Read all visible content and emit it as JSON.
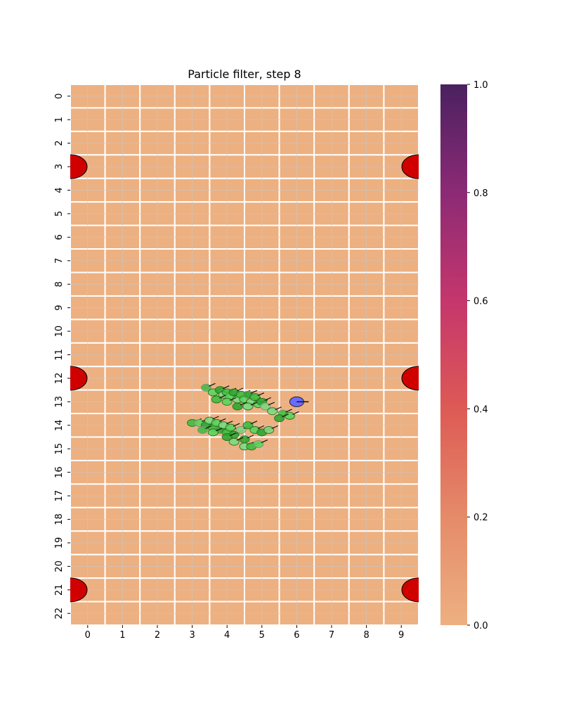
{
  "chart_data": {
    "type": "heatmap",
    "title": "Particle filter, step 8",
    "xlabel": "",
    "ylabel": "",
    "rows": 23,
    "cols": 10,
    "x_ticks": [
      "0",
      "1",
      "2",
      "3",
      "4",
      "5",
      "6",
      "7",
      "8",
      "9"
    ],
    "y_ticks": [
      "0",
      "1",
      "2",
      "3",
      "4",
      "5",
      "6",
      "7",
      "8",
      "9",
      "10",
      "11",
      "12",
      "13",
      "14",
      "15",
      "16",
      "17",
      "18",
      "19",
      "20",
      "21",
      "22"
    ],
    "cell_value": 0.0,
    "colorbar": {
      "min": 0.0,
      "max": 1.0,
      "ticks": [
        "0.0",
        "0.2",
        "0.4",
        "0.6",
        "0.8",
        "1.0"
      ],
      "colormap": "flare",
      "stops": [
        "#edb081",
        "#e58b69",
        "#dd5a55",
        "#c5366c",
        "#8c2a75",
        "#4a2160"
      ]
    },
    "grid": true,
    "beacons": [
      {
        "x": 0,
        "y": 3.5
      },
      {
        "x": 9,
        "y": 3.5
      },
      {
        "x": 0,
        "y": 12.5
      },
      {
        "x": 9,
        "y": 12.5
      },
      {
        "x": 0,
        "y": 21.5
      },
      {
        "x": 9,
        "y": 21.5
      }
    ],
    "robot": {
      "x": 6.0,
      "y": 13.0,
      "heading_deg": 0
    },
    "particles": [
      {
        "x": 3.4,
        "y": 12.4
      },
      {
        "x": 3.6,
        "y": 12.6
      },
      {
        "x": 3.8,
        "y": 12.5
      },
      {
        "x": 3.9,
        "y": 12.7
      },
      {
        "x": 4.0,
        "y": 12.6
      },
      {
        "x": 4.1,
        "y": 12.8
      },
      {
        "x": 4.2,
        "y": 12.6
      },
      {
        "x": 4.3,
        "y": 12.9
      },
      {
        "x": 4.4,
        "y": 12.7
      },
      {
        "x": 4.5,
        "y": 12.9
      },
      {
        "x": 4.6,
        "y": 12.7
      },
      {
        "x": 4.7,
        "y": 13.0
      },
      {
        "x": 4.8,
        "y": 12.8
      },
      {
        "x": 4.9,
        "y": 13.1
      },
      {
        "x": 5.0,
        "y": 13.0
      },
      {
        "x": 5.1,
        "y": 13.2
      },
      {
        "x": 3.7,
        "y": 12.9
      },
      {
        "x": 4.0,
        "y": 13.0
      },
      {
        "x": 4.3,
        "y": 13.2
      },
      {
        "x": 4.6,
        "y": 13.2
      },
      {
        "x": 5.6,
        "y": 13.5
      },
      {
        "x": 5.8,
        "y": 13.6
      },
      {
        "x": 5.5,
        "y": 13.7
      },
      {
        "x": 5.3,
        "y": 13.4
      },
      {
        "x": 3.0,
        "y": 13.9
      },
      {
        "x": 3.2,
        "y": 13.9
      },
      {
        "x": 3.4,
        "y": 14.0
      },
      {
        "x": 3.5,
        "y": 13.8
      },
      {
        "x": 3.6,
        "y": 14.1
      },
      {
        "x": 3.7,
        "y": 13.9
      },
      {
        "x": 3.8,
        "y": 14.2
      },
      {
        "x": 3.9,
        "y": 14.0
      },
      {
        "x": 4.0,
        "y": 14.3
      },
      {
        "x": 4.1,
        "y": 14.1
      },
      {
        "x": 4.2,
        "y": 14.4
      },
      {
        "x": 4.4,
        "y": 14.2
      },
      {
        "x": 4.6,
        "y": 14.0
      },
      {
        "x": 4.8,
        "y": 14.2
      },
      {
        "x": 5.0,
        "y": 14.3
      },
      {
        "x": 5.2,
        "y": 14.2
      },
      {
        "x": 3.3,
        "y": 14.2
      },
      {
        "x": 3.6,
        "y": 14.3
      },
      {
        "x": 4.5,
        "y": 14.6
      },
      {
        "x": 4.5,
        "y": 14.9
      },
      {
        "x": 4.7,
        "y": 14.9
      },
      {
        "x": 4.9,
        "y": 14.8
      },
      {
        "x": 4.0,
        "y": 14.5
      },
      {
        "x": 4.2,
        "y": 14.7
      }
    ]
  }
}
